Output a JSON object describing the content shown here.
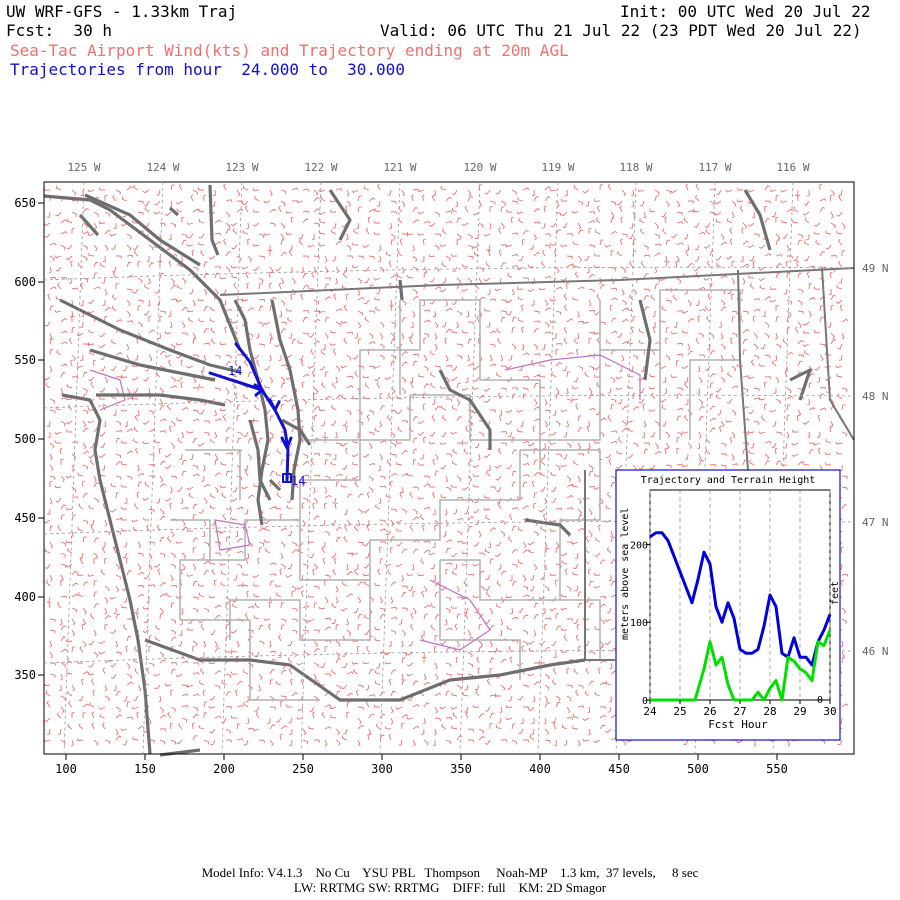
{
  "header": {
    "title": "UW WRF-GFS - 1.33km Traj",
    "init": "Init: 00 UTC Wed 20 Jul 22",
    "fcst": "Fcst:  30 h",
    "valid": "Valid: 06 UTC Thu 21 Jul 22 (23 PDT Wed 20 Jul 22)",
    "subtitle": "Sea-Tac Airport Wind(kts) and Trajectory ending at 20m AGL",
    "traj_range": "Trajectories from hour  24.000 to  30.000"
  },
  "map": {
    "x_ticks": [
      "100",
      "150",
      "200",
      "250",
      "300",
      "350",
      "400",
      "450",
      "500",
      "550"
    ],
    "y_ticks": [
      "650",
      "600",
      "550",
      "500",
      "450",
      "400",
      "350"
    ],
    "lon_labels": [
      "125 W",
      "124 W",
      "123 W",
      "122 W",
      "121 W",
      "120 W",
      "119 W",
      "118 W",
      "117 W",
      "116 W"
    ],
    "lat_labels": [
      "49 N",
      "48 N",
      "47 N",
      "46 N"
    ],
    "trajectory_labels": [
      "14",
      "14"
    ],
    "colors": {
      "coast": "#6e6e6e",
      "county": "#b0b0b0",
      "wind": "#f07070",
      "trajectory": "#1010d0",
      "border": "#c060c0"
    }
  },
  "inset": {
    "title": "Trajectory and Terrain Height",
    "ylabel_left": "meters above sea level",
    "ylabel_right": "feet",
    "xlabel": "Fcst Hour",
    "x_ticks": [
      "24",
      "25",
      "26",
      "27",
      "28",
      "29",
      "30"
    ],
    "y_ticks": [
      "200",
      "100",
      "0"
    ],
    "y_right_zero": "0"
  },
  "chart_data": {
    "type": "line",
    "title": "Trajectory and Terrain Height",
    "xlabel": "Fcst Hour",
    "ylabel": "meters above sea level",
    "xlim": [
      24,
      30
    ],
    "ylim": [
      0,
      270
    ],
    "series": [
      {
        "color": "#0000dd",
        "x": [
          24,
          24.2,
          24.4,
          24.6,
          25.0,
          25.4,
          25.6,
          25.8,
          26.0,
          26.2,
          26.4,
          26.6,
          26.8,
          27.0,
          27.2,
          27.4,
          27.6,
          27.8,
          28.0,
          28.2,
          28.4,
          28.6,
          28.8,
          29.0,
          29.2,
          29.4,
          29.6,
          29.8,
          30.0
        ],
        "y": [
          210,
          215,
          215,
          205,
          165,
          125,
          155,
          190,
          175,
          120,
          100,
          125,
          105,
          65,
          60,
          60,
          65,
          95,
          135,
          120,
          60,
          55,
          80,
          55,
          55,
          45,
          75,
          90,
          110
        ]
      },
      {
        "color": "#00e000",
        "x": [
          24,
          24.5,
          25.0,
          25.5,
          25.8,
          26.0,
          26.2,
          26.4,
          26.6,
          26.8,
          27.0,
          27.2,
          27.4,
          27.6,
          27.8,
          28.0,
          28.2,
          28.4,
          28.6,
          28.8,
          29.0,
          29.2,
          29.4,
          29.6,
          29.8,
          30.0
        ],
        "y": [
          0,
          0,
          0,
          0,
          40,
          75,
          45,
          55,
          20,
          0,
          0,
          0,
          0,
          10,
          0,
          15,
          25,
          0,
          55,
          50,
          40,
          35,
          25,
          75,
          70,
          90
        ]
      }
    ]
  },
  "footer": {
    "line1": "Model Info: V4.1.3    No Cu    YSU PBL   Thompson     Noah-MP    1.3 km,  37 levels,     8 sec",
    "line2": "LW: RRTMG SW: RRTMG    DIFF: full    KM: 2D Smagor"
  }
}
